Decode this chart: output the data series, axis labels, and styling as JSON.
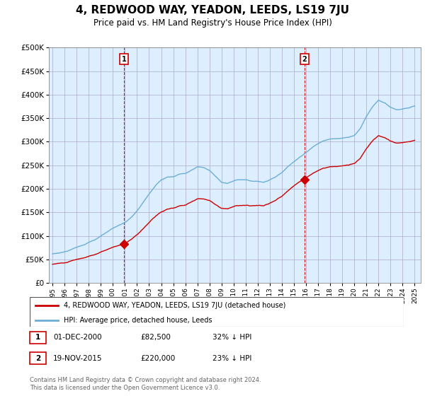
{
  "title": "4, REDWOOD WAY, YEADON, LEEDS, LS19 7JU",
  "subtitle": "Price paid vs. HM Land Registry's House Price Index (HPI)",
  "title_fontsize": 11,
  "subtitle_fontsize": 8.5,
  "sale1_price": 82500,
  "sale2_price": 220000,
  "legend_line1": "4, REDWOOD WAY, YEADON, LEEDS, LS19 7JU (detached house)",
  "legend_line2": "HPI: Average price, detached house, Leeds",
  "sale1_col1": "01-DEC-2000",
  "sale1_col2": "£82,500",
  "sale1_col3": "32% ↓ HPI",
  "sale2_col1": "19-NOV-2015",
  "sale2_col2": "£220,000",
  "sale2_col3": "23% ↓ HPI",
  "footer": "Contains HM Land Registry data © Crown copyright and database right 2024.\nThis data is licensed under the Open Government Licence v3.0.",
  "hpi_color": "#6baed6",
  "price_color": "#cc0000",
  "vline_color": "#cc0000",
  "plot_bg_color": "#ddeeff",
  "background_color": "#ffffff",
  "grid_color": "#aaaacc",
  "ylim": [
    0,
    500000
  ],
  "yticks": [
    0,
    50000,
    100000,
    150000,
    200000,
    250000,
    300000,
    350000,
    400000,
    450000,
    500000
  ],
  "xlim_start": 1994.7,
  "xlim_end": 2025.5,
  "sale1_year_f": 2000.917,
  "sale2_year_f": 2015.875
}
